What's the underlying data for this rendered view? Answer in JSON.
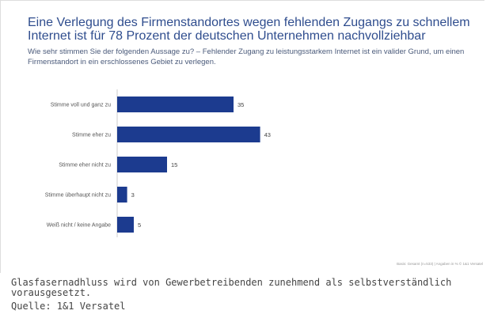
{
  "chart_data": {
    "type": "bar",
    "orientation": "horizontal",
    "title": "Eine Verlegung des Firmenstandortes wegen fehlenden Zugangs zu schnellem Internet ist für 78 Prozent der deutschen Unternehmen nachvollziehbar",
    "subtitle": "Wie sehr stimmen Sie der folgenden Aussage zu? – Fehlender Zugang zu leistungsstarkem Internet ist ein valider Grund, um einen Firmenstandort in ein erschlossenes Gebiet zu verlegen.",
    "categories": [
      "Stimme voll und ganz zu",
      "Stimme eher zu",
      "Stimme eher nicht zu",
      "Stimme überhaupt nicht zu",
      "Weiß nicht / keine Angabe"
    ],
    "values": [
      35,
      43,
      15,
      3,
      5
    ],
    "xlim": [
      0,
      50
    ],
    "grid": false,
    "bar_color": "#1c3b8f",
    "footnote": "Basis: Gesamt (n=533) | Angaben in %    © 1&1 Versatel"
  },
  "caption": "Glasfasernadhluss wird von Gewerbetreibenden zunehmend als selbstverständlich vorausgesetzt.",
  "source": "Quelle: 1&1 Versatel"
}
